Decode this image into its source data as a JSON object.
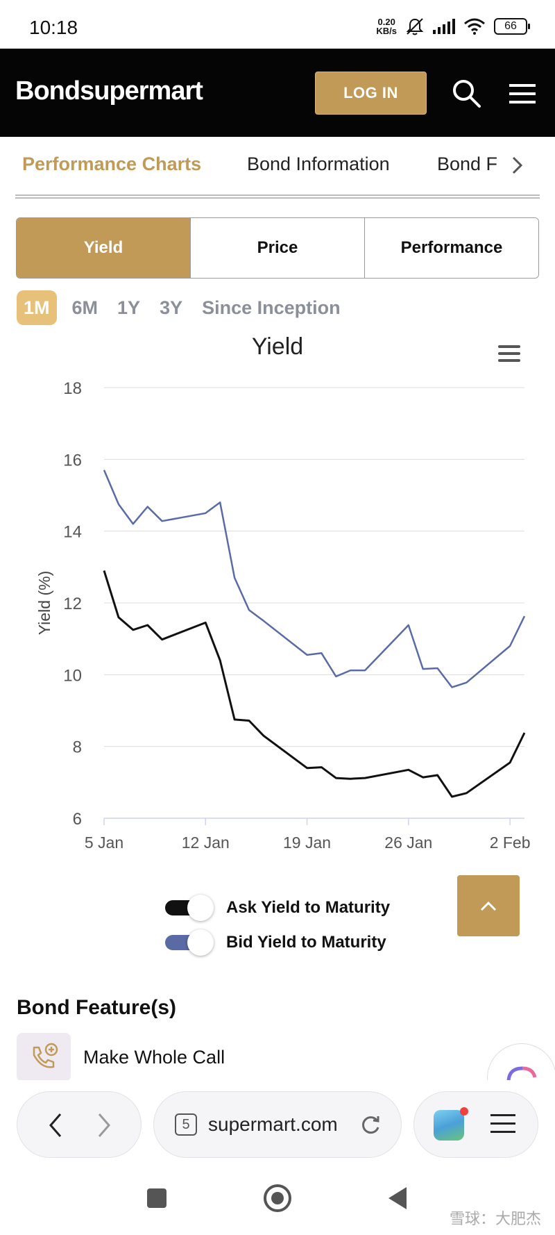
{
  "status_bar": {
    "time": "10:18",
    "net_speed_value": "0.20",
    "net_speed_unit": "KB/s",
    "battery": "66",
    "icons": [
      "mute-icon",
      "signal-icon",
      "wifi-icon",
      "battery-icon"
    ]
  },
  "header": {
    "logo": "Bondsupermart",
    "login_label": "LOG IN",
    "colors": {
      "background": "#050505",
      "accent": "#c09a56"
    }
  },
  "nav_tabs": [
    {
      "label": "Performance Charts",
      "active": true
    },
    {
      "label": "Bond Information",
      "active": false
    },
    {
      "label": "Bond F",
      "active": false
    }
  ],
  "chart_types": [
    {
      "label": "Yield",
      "active": true
    },
    {
      "label": "Price",
      "active": false
    },
    {
      "label": "Performance",
      "active": false
    }
  ],
  "periods": [
    {
      "label": "1M",
      "active": true
    },
    {
      "label": "6M",
      "active": false
    },
    {
      "label": "1Y",
      "active": false
    },
    {
      "label": "3Y",
      "active": false
    },
    {
      "label": "Since Inception",
      "active": false
    }
  ],
  "chart_data": {
    "type": "line",
    "title": "Yield",
    "xlabel": "",
    "ylabel": "Yield (%)",
    "ylim": [
      6,
      18
    ],
    "xlim": [
      "2026-01-05",
      "2026-02-03"
    ],
    "yticks": [
      6,
      8,
      10,
      12,
      14,
      16,
      18
    ],
    "xticks": [
      {
        "date": "2026-01-05",
        "label": "5 Jan"
      },
      {
        "date": "2026-01-12",
        "label": "12 Jan"
      },
      {
        "date": "2026-01-19",
        "label": "19 Jan"
      },
      {
        "date": "2026-01-26",
        "label": "26 Jan"
      },
      {
        "date": "2026-02-02",
        "label": "2 Feb"
      }
    ],
    "grid": true,
    "legend_position": "bottom",
    "series": [
      {
        "name": "Bid Yield to Maturity",
        "color": "#5a6aa5",
        "points": [
          [
            "2026-01-05",
            15.7
          ],
          [
            "2026-01-06",
            14.75
          ],
          [
            "2026-01-07",
            14.2
          ],
          [
            "2026-01-08",
            14.68
          ],
          [
            "2026-01-09",
            14.28
          ],
          [
            "2026-01-12",
            14.5
          ],
          [
            "2026-01-13",
            14.8
          ],
          [
            "2026-01-14",
            12.7
          ],
          [
            "2026-01-15",
            11.8
          ],
          [
            "2026-01-16",
            11.5
          ],
          [
            "2026-01-19",
            10.55
          ],
          [
            "2026-01-20",
            10.6
          ],
          [
            "2026-01-21",
            9.95
          ],
          [
            "2026-01-22",
            10.12
          ],
          [
            "2026-01-23",
            10.12
          ],
          [
            "2026-01-26",
            11.38
          ],
          [
            "2026-01-27",
            10.16
          ],
          [
            "2026-01-28",
            10.18
          ],
          [
            "2026-01-29",
            9.65
          ],
          [
            "2026-01-30",
            9.78
          ],
          [
            "2026-02-02",
            10.8
          ],
          [
            "2026-02-03",
            11.63
          ]
        ]
      },
      {
        "name": "Ask Yield to Maturity",
        "color": "#111111",
        "points": [
          [
            "2026-01-05",
            12.9
          ],
          [
            "2026-01-06",
            11.6
          ],
          [
            "2026-01-07",
            11.25
          ],
          [
            "2026-01-08",
            11.38
          ],
          [
            "2026-01-09",
            10.98
          ],
          [
            "2026-01-12",
            11.45
          ],
          [
            "2026-01-13",
            10.4
          ],
          [
            "2026-01-14",
            8.75
          ],
          [
            "2026-01-15",
            8.72
          ],
          [
            "2026-01-16",
            8.3
          ],
          [
            "2026-01-19",
            7.4
          ],
          [
            "2026-01-20",
            7.42
          ],
          [
            "2026-01-21",
            7.12
          ],
          [
            "2026-01-22",
            7.1
          ],
          [
            "2026-01-23",
            7.12
          ],
          [
            "2026-01-26",
            7.35
          ],
          [
            "2026-01-27",
            7.14
          ],
          [
            "2026-01-28",
            7.2
          ],
          [
            "2026-01-29",
            6.6
          ],
          [
            "2026-01-30",
            6.7
          ],
          [
            "2026-02-02",
            7.55
          ],
          [
            "2026-02-03",
            8.38
          ]
        ]
      }
    ]
  },
  "legend": [
    {
      "label": "Ask Yield to Maturity",
      "color": "#111111",
      "on": true
    },
    {
      "label": "Bid Yield to Maturity",
      "color": "#5a6aa5",
      "on": true
    }
  ],
  "bond_features": {
    "title": "Bond Feature(s)",
    "items": [
      {
        "label": "Make Whole Call",
        "icon": "phone-plus-icon"
      }
    ]
  },
  "browser": {
    "tab_count": "5",
    "url": "supermart.com"
  },
  "watermark": "雪球：大肥杰"
}
